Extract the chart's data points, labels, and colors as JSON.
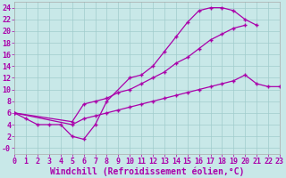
{
  "xlabel": "Windchill (Refroidissement éolien,°C)",
  "bg_color": "#c8e8e8",
  "grid_color": "#a0cccc",
  "line_color": "#aa00aa",
  "xlim": [
    0,
    23
  ],
  "ylim": [
    -1,
    25
  ],
  "xticks": [
    0,
    1,
    2,
    3,
    4,
    5,
    6,
    7,
    8,
    9,
    10,
    11,
    12,
    13,
    14,
    15,
    16,
    17,
    18,
    19,
    20,
    21,
    22,
    23
  ],
  "yticks": [
    0,
    2,
    4,
    6,
    8,
    10,
    12,
    14,
    16,
    18,
    20,
    22,
    24
  ],
  "ytick_labels": [
    "-0",
    "2",
    "4",
    "6",
    "8",
    "10",
    "12",
    "14",
    "16",
    "18",
    "20",
    "22",
    "24"
  ],
  "curve1_x": [
    0,
    1,
    2,
    3,
    4,
    5,
    6,
    7,
    8,
    10,
    11,
    12,
    13,
    14,
    15,
    16,
    17,
    18,
    19,
    20,
    21
  ],
  "curve1_y": [
    6.0,
    5.0,
    4.0,
    4.0,
    4.0,
    2.0,
    1.5,
    4.0,
    8.0,
    12.0,
    12.5,
    14.0,
    16.5,
    19.0,
    21.5,
    23.5,
    24.0,
    24.0,
    23.5,
    22.0,
    21.0
  ],
  "curve2_x": [
    0,
    5,
    6,
    7,
    8,
    9,
    10,
    11,
    12,
    13,
    14,
    15,
    16,
    17,
    18,
    19,
    20
  ],
  "curve2_y": [
    6.0,
    4.5,
    7.5,
    8.0,
    8.5,
    9.5,
    10.0,
    11.0,
    12.0,
    13.0,
    14.5,
    15.5,
    17.0,
    18.5,
    19.5,
    20.5,
    21.0
  ],
  "curve3_x": [
    0,
    5,
    6,
    7,
    8,
    9,
    10,
    11,
    12,
    13,
    14,
    15,
    16,
    17,
    18,
    19,
    20,
    21,
    22,
    23
  ],
  "curve3_y": [
    6.0,
    4.0,
    5.0,
    5.5,
    6.0,
    6.5,
    7.0,
    7.5,
    8.0,
    8.5,
    9.0,
    9.5,
    10.0,
    10.5,
    11.0,
    11.5,
    12.5,
    11.0,
    10.5,
    10.5
  ],
  "tick_fontsize": 6,
  "xlabel_fontsize": 7
}
